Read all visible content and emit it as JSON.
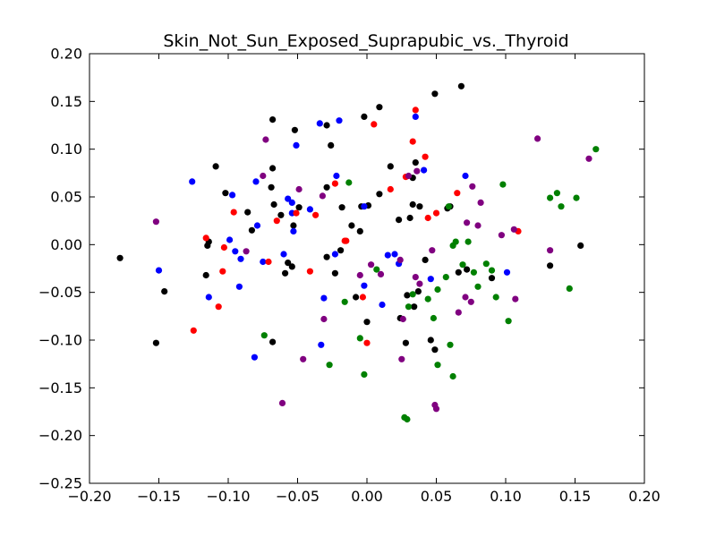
{
  "chart_data": {
    "type": "scatter",
    "title": "Skin_Not_Sun_Exposed_Suprapubic_vs._Thyroid",
    "xlabel": "",
    "ylabel": "",
    "xlim": [
      -0.2,
      0.2
    ],
    "ylim": [
      -0.25,
      0.2
    ],
    "x_ticks": [
      -0.2,
      -0.15,
      -0.1,
      -0.05,
      0.0,
      0.05,
      0.1,
      0.15,
      0.2
    ],
    "y_ticks": [
      -0.25,
      -0.2,
      -0.15,
      -0.1,
      -0.05,
      0.0,
      0.05,
      0.1,
      0.15,
      0.2
    ],
    "x_tick_labels": [
      "−0.20",
      "−0.15",
      "−0.10",
      "−0.05",
      "0.00",
      "0.05",
      "0.10",
      "0.15",
      "0.20"
    ],
    "y_tick_labels": [
      "−0.25",
      "−0.20",
      "−0.15",
      "−0.10",
      "−0.05",
      "0.00",
      "0.05",
      "0.10",
      "0.15",
      "0.20"
    ],
    "grid": false,
    "legend": "none",
    "series": [
      {
        "color": "#000000",
        "points": [
          [
            -0.178,
            -0.014
          ],
          [
            -0.152,
            -0.103
          ],
          [
            -0.146,
            -0.049
          ],
          [
            -0.116,
            -0.032
          ],
          [
            -0.115,
            -0.001
          ],
          [
            -0.114,
            0.003
          ],
          [
            -0.109,
            0.082
          ],
          [
            -0.102,
            0.054
          ],
          [
            -0.086,
            0.034
          ],
          [
            -0.083,
            0.015
          ],
          [
            -0.068,
            0.131
          ],
          [
            -0.068,
            0.08
          ],
          [
            -0.069,
            0.06
          ],
          [
            -0.067,
            0.042
          ],
          [
            -0.062,
            0.031
          ],
          [
            -0.059,
            -0.03
          ],
          [
            -0.057,
            -0.019
          ],
          [
            -0.052,
            0.12
          ],
          [
            -0.049,
            0.039
          ],
          [
            -0.053,
            0.02
          ],
          [
            -0.054,
            -0.023
          ],
          [
            -0.068,
            -0.102
          ],
          [
            -0.029,
            0.125
          ],
          [
            -0.026,
            0.104
          ],
          [
            -0.029,
            0.06
          ],
          [
            -0.023,
            -0.03
          ],
          [
            -0.029,
            -0.013
          ],
          [
            -0.019,
            -0.006
          ],
          [
            -0.018,
            0.039
          ],
          [
            -0.011,
            0.02
          ],
          [
            -0.004,
            0.04
          ],
          [
            -0.005,
            0.014
          ],
          [
            -0.008,
            -0.055
          ],
          [
            -0.002,
            0.134
          ],
          [
            0.009,
            0.144
          ],
          [
            0.001,
            0.041
          ],
          [
            0.0,
            -0.081
          ],
          [
            0.009,
            0.053
          ],
          [
            0.017,
            0.082
          ],
          [
            0.023,
            0.026
          ],
          [
            0.024,
            -0.077
          ],
          [
            0.028,
            -0.103
          ],
          [
            0.031,
            0.028
          ],
          [
            0.033,
            0.07
          ],
          [
            0.035,
            0.086
          ],
          [
            0.038,
            0.04
          ],
          [
            0.037,
            -0.049
          ],
          [
            0.034,
            -0.065
          ],
          [
            0.042,
            -0.016
          ],
          [
            0.046,
            -0.1
          ],
          [
            0.049,
            0.158
          ],
          [
            0.049,
            -0.11
          ],
          [
            0.06,
            0.04
          ],
          [
            0.066,
            -0.029
          ],
          [
            0.068,
            0.166
          ],
          [
            0.072,
            -0.026
          ],
          [
            0.09,
            -0.035
          ],
          [
            0.132,
            -0.022
          ],
          [
            0.154,
            -0.001
          ],
          [
            0.029,
            -0.053
          ],
          [
            0.033,
            0.042
          ],
          [
            0.058,
            0.038
          ]
        ]
      },
      {
        "color": "#0000ff",
        "points": [
          [
            -0.15,
            -0.027
          ],
          [
            -0.126,
            0.066
          ],
          [
            -0.114,
            -0.055
          ],
          [
            -0.099,
            0.005
          ],
          [
            -0.097,
            0.052
          ],
          [
            -0.095,
            -0.007
          ],
          [
            -0.092,
            -0.044
          ],
          [
            -0.091,
            -0.015
          ],
          [
            -0.08,
            0.066
          ],
          [
            -0.079,
            0.02
          ],
          [
            -0.081,
            -0.118
          ],
          [
            -0.075,
            -0.018
          ],
          [
            -0.06,
            -0.01
          ],
          [
            -0.057,
            0.048
          ],
          [
            -0.054,
            0.044
          ],
          [
            -0.054,
            0.033
          ],
          [
            -0.053,
            0.014
          ],
          [
            -0.051,
            0.104
          ],
          [
            -0.041,
            0.037
          ],
          [
            -0.034,
            0.127
          ],
          [
            -0.031,
            -0.056
          ],
          [
            -0.033,
            -0.105
          ],
          [
            -0.022,
            0.072
          ],
          [
            -0.02,
            0.13
          ],
          [
            -0.023,
            -0.01
          ],
          [
            -0.002,
            0.04
          ],
          [
            0.011,
            -0.063
          ],
          [
            0.015,
            -0.011
          ],
          [
            0.02,
            -0.01
          ],
          [
            0.023,
            -0.02
          ],
          [
            0.035,
            0.134
          ],
          [
            0.041,
            0.078
          ],
          [
            0.046,
            -0.036
          ],
          [
            0.071,
            0.072
          ],
          [
            0.101,
            -0.029
          ],
          [
            -0.002,
            -0.043
          ]
        ]
      },
      {
        "color": "#ff0000",
        "points": [
          [
            -0.125,
            -0.09
          ],
          [
            -0.116,
            0.007
          ],
          [
            -0.107,
            -0.065
          ],
          [
            -0.103,
            -0.003
          ],
          [
            -0.104,
            -0.028
          ],
          [
            -0.096,
            0.034
          ],
          [
            -0.071,
            -0.018
          ],
          [
            -0.065,
            0.025
          ],
          [
            -0.051,
            0.033
          ],
          [
            -0.041,
            -0.028
          ],
          [
            -0.037,
            0.031
          ],
          [
            -0.023,
            0.064
          ],
          [
            -0.016,
            0.004
          ],
          [
            -0.015,
            0.004
          ],
          [
            -0.003,
            -0.055
          ],
          [
            0.0,
            -0.103
          ],
          [
            0.005,
            0.126
          ],
          [
            0.017,
            0.058
          ],
          [
            0.028,
            0.071
          ],
          [
            0.033,
            0.108
          ],
          [
            0.035,
            0.141
          ],
          [
            0.042,
            0.092
          ],
          [
            0.044,
            0.028
          ],
          [
            0.05,
            0.033
          ],
          [
            0.065,
            0.054
          ],
          [
            0.109,
            0.014
          ]
        ]
      },
      {
        "color": "#008000",
        "points": [
          [
            -0.074,
            -0.095
          ],
          [
            -0.027,
            -0.126
          ],
          [
            -0.016,
            -0.06
          ],
          [
            -0.013,
            0.065
          ],
          [
            -0.005,
            -0.098
          ],
          [
            -0.002,
            -0.136
          ],
          [
            0.007,
            -0.026
          ],
          [
            0.027,
            -0.181
          ],
          [
            0.029,
            -0.183
          ],
          [
            0.03,
            -0.065
          ],
          [
            0.033,
            -0.052
          ],
          [
            0.044,
            -0.057
          ],
          [
            0.048,
            -0.077
          ],
          [
            0.051,
            -0.047
          ],
          [
            0.051,
            -0.126
          ],
          [
            0.057,
            -0.034
          ],
          [
            0.059,
            0.04
          ],
          [
            0.06,
            -0.105
          ],
          [
            0.062,
            -0.138
          ],
          [
            0.062,
            -0.001
          ],
          [
            0.064,
            0.003
          ],
          [
            0.069,
            -0.021
          ],
          [
            0.073,
            0.003
          ],
          [
            0.077,
            -0.029
          ],
          [
            0.08,
            -0.044
          ],
          [
            0.086,
            -0.02
          ],
          [
            0.09,
            -0.027
          ],
          [
            0.093,
            -0.055
          ],
          [
            0.098,
            0.063
          ],
          [
            0.102,
            -0.08
          ],
          [
            0.132,
            0.049
          ],
          [
            0.137,
            0.054
          ],
          [
            0.14,
            0.04
          ],
          [
            0.146,
            -0.046
          ],
          [
            0.151,
            0.049
          ],
          [
            0.165,
            0.1
          ]
        ]
      },
      {
        "color": "#800080",
        "points": [
          [
            -0.152,
            0.024
          ],
          [
            -0.087,
            -0.007
          ],
          [
            -0.075,
            0.072
          ],
          [
            -0.073,
            0.11
          ],
          [
            -0.061,
            -0.166
          ],
          [
            -0.049,
            0.058
          ],
          [
            -0.046,
            -0.12
          ],
          [
            -0.032,
            0.051
          ],
          [
            -0.031,
            -0.078
          ],
          [
            -0.005,
            -0.032
          ],
          [
            0.003,
            -0.021
          ],
          [
            0.01,
            -0.031
          ],
          [
            0.024,
            -0.016
          ],
          [
            0.025,
            -0.12
          ],
          [
            0.026,
            -0.078
          ],
          [
            0.03,
            0.072
          ],
          [
            0.035,
            -0.034
          ],
          [
            0.038,
            -0.041
          ],
          [
            0.036,
            0.077
          ],
          [
            0.047,
            -0.006
          ],
          [
            0.049,
            -0.168
          ],
          [
            0.05,
            -0.172
          ],
          [
            0.066,
            -0.071
          ],
          [
            0.071,
            -0.055
          ],
          [
            0.072,
            0.023
          ],
          [
            0.075,
            -0.06
          ],
          [
            0.076,
            0.061
          ],
          [
            0.08,
            0.02
          ],
          [
            0.082,
            0.044
          ],
          [
            0.097,
            0.01
          ],
          [
            0.107,
            -0.057
          ],
          [
            0.123,
            0.111
          ],
          [
            0.132,
            -0.006
          ],
          [
            0.16,
            0.09
          ],
          [
            0.106,
            0.016
          ]
        ]
      }
    ]
  }
}
